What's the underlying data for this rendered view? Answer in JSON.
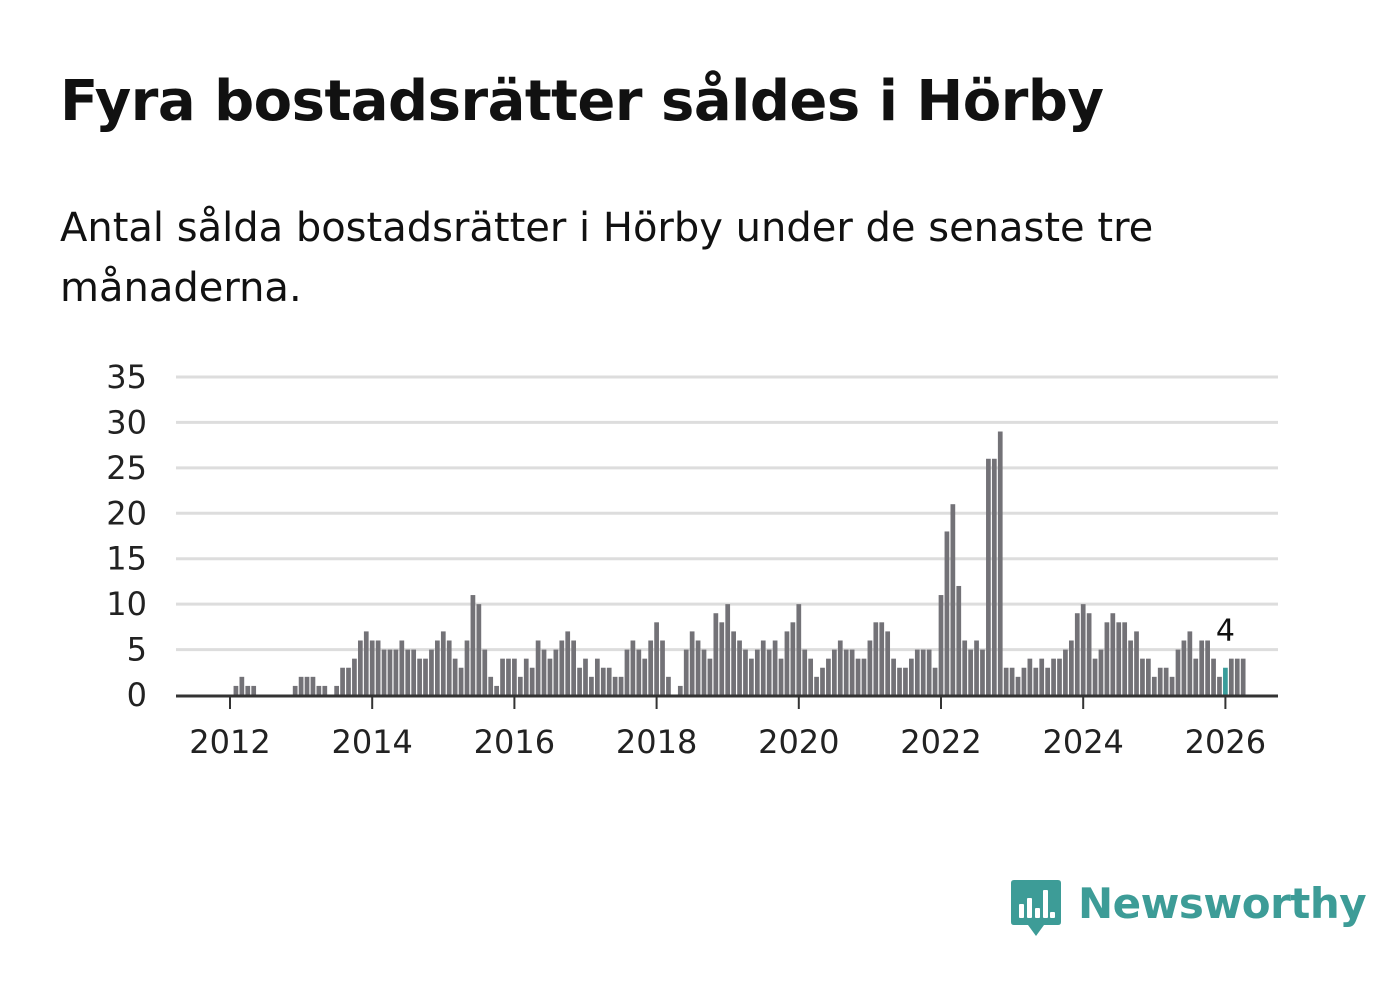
{
  "title": "Fyra bostadsrätter såldes i Hörby",
  "subtitle": "Antal sålda bostadsrätter i Hörby under de senaste tre månaderna.",
  "brand": {
    "name": "Newsworthy",
    "color": "#3d9c97",
    "icon": "newsworthy-logo-icon"
  },
  "colors": {
    "bar": "#737277",
    "highlight": "#3a9d9b",
    "grid": "#dddddd",
    "axis": "#333333"
  },
  "chart_data": {
    "type": "bar",
    "title": "",
    "xlabel": "",
    "ylabel": "",
    "ylim": [
      0,
      35
    ],
    "yticks": [
      "0",
      "5",
      "10",
      "15",
      "20",
      "25",
      "30",
      "35"
    ],
    "xticks": [
      "2012",
      "2014",
      "2016",
      "2018",
      "2020",
      "2022",
      "2024",
      "2026"
    ],
    "grid": true,
    "x_start": "2011-10",
    "x_end": "2026-01",
    "values": [
      0,
      0,
      0,
      0,
      1,
      2,
      1,
      1,
      0,
      0,
      0,
      0,
      0,
      0,
      1,
      2,
      2,
      2,
      1,
      1,
      0,
      1,
      3,
      3,
      4,
      6,
      7,
      6,
      6,
      5,
      5,
      5,
      6,
      5,
      5,
      4,
      4,
      5,
      6,
      7,
      6,
      4,
      3,
      6,
      11,
      10,
      5,
      2,
      1,
      4,
      4,
      4,
      2,
      4,
      3,
      6,
      5,
      4,
      5,
      6,
      7,
      6,
      3,
      4,
      2,
      4,
      3,
      3,
      2,
      2,
      5,
      6,
      5,
      4,
      6,
      8,
      6,
      2,
      0,
      1,
      5,
      7,
      6,
      5,
      4,
      9,
      8,
      10,
      7,
      6,
      5,
      4,
      5,
      6,
      5,
      6,
      4,
      7,
      8,
      10,
      5,
      4,
      2,
      3,
      4,
      5,
      6,
      5,
      5,
      4,
      4,
      6,
      8,
      8,
      7,
      4,
      3,
      3,
      4,
      5,
      5,
      5,
      3,
      11,
      18,
      21,
      12,
      6,
      5,
      6,
      5,
      26,
      26,
      29,
      3,
      3,
      2,
      3,
      4,
      3,
      4,
      3,
      4,
      4,
      5,
      6,
      9,
      10,
      9,
      4,
      5,
      8,
      9,
      8,
      8,
      6,
      7,
      4,
      4,
      2,
      3,
      3,
      2,
      5,
      6,
      7,
      4,
      6,
      6,
      4,
      2,
      3,
      4,
      4,
      4
    ],
    "highlight": {
      "label": "4",
      "value": 4,
      "date": "2026-01"
    }
  }
}
